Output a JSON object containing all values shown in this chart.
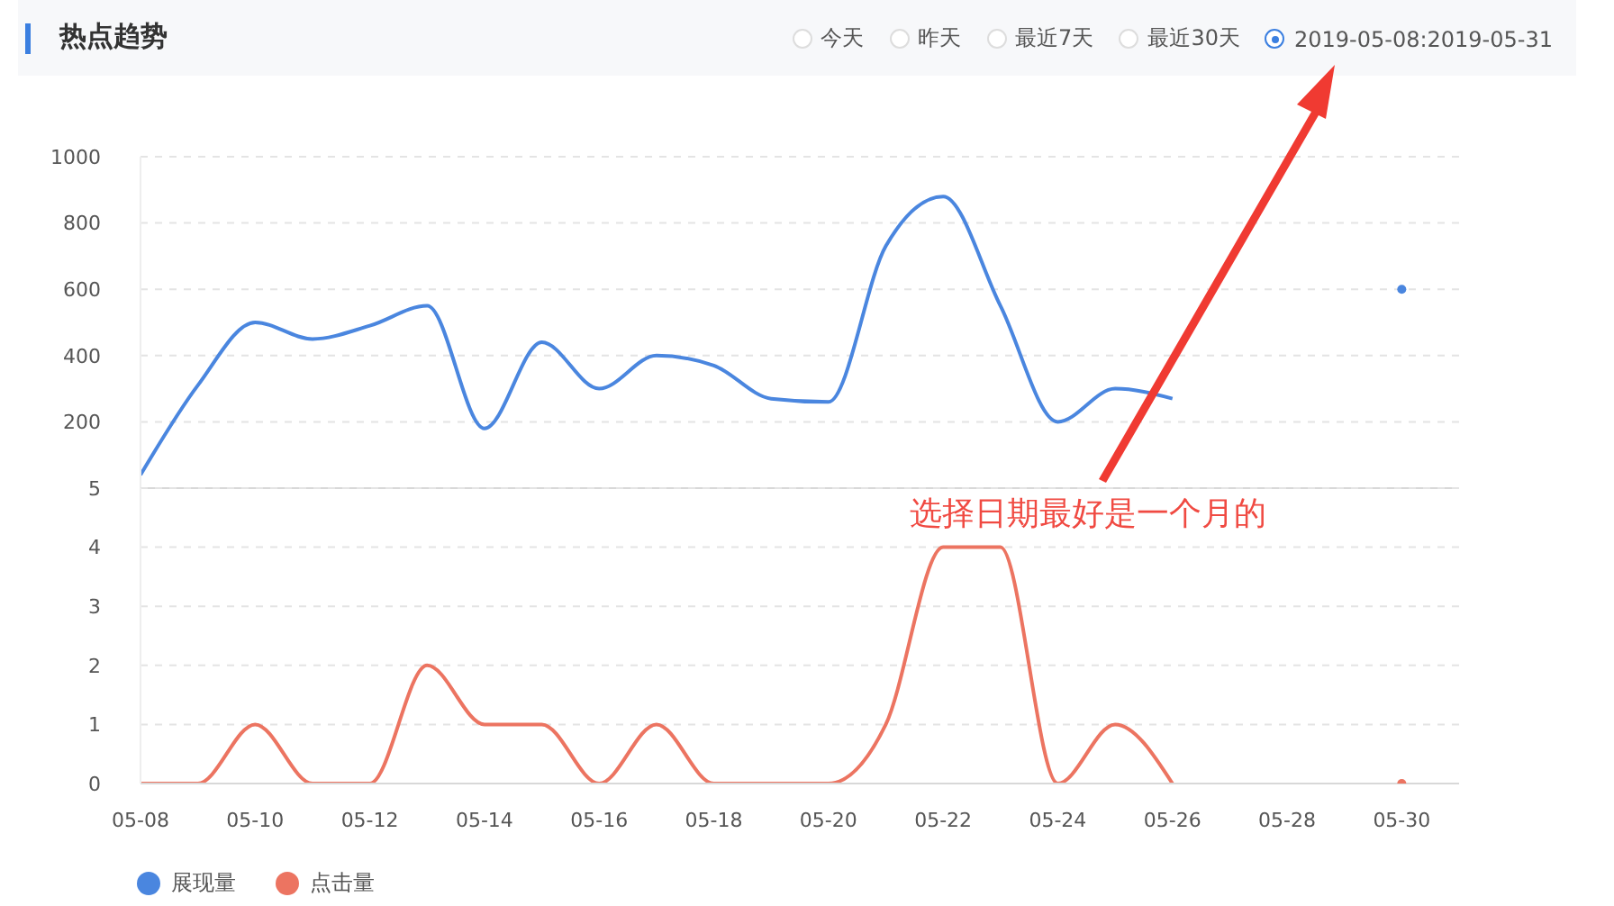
{
  "chart_data": [
    {
      "type": "line",
      "title": "热点趋势",
      "annotations": [
        "今天",
        "昨天",
        "最近7天",
        "最近30天",
        "2019-05-08:2019-05-31"
      ],
      "categories": [
        "05-08",
        null,
        "05-10",
        null,
        "05-12",
        null,
        "05-14",
        null,
        "05-16",
        null,
        "05-18",
        null,
        "05-20",
        null,
        "05-22",
        null,
        "05-24",
        null,
        "05-26",
        null,
        "05-28",
        null,
        "05-30",
        null
      ],
      "series": [
        {
          "name": "展现量",
          "color": "#4a86df",
          "values": [
            40,
            310,
            500,
            450,
            490,
            550,
            180,
            440,
            300,
            400,
            370,
            270,
            260,
            730,
            880,
            550,
            200,
            300,
            270,
            null,
            null,
            null,
            600,
            null
          ]
        }
      ],
      "ylim": [
        0,
        1000
      ],
      "yticks": [
        200,
        400,
        600,
        800,
        1000
      ],
      "grid": "y",
      "tick_labels": "y",
      "marker": "none",
      "line_style": "solid",
      "legend": "bottom left"
    },
    {
      "type": "line",
      "annotations": [
        "选择日期最好是一个月的"
      ],
      "categories": [
        "05-08",
        null,
        "05-10",
        null,
        "05-12",
        null,
        "05-14",
        null,
        "05-16",
        null,
        "05-18",
        null,
        "05-20",
        null,
        "05-22",
        null,
        "05-24",
        null,
        "05-26",
        null,
        "05-28",
        null,
        "05-30",
        null
      ],
      "series": [
        {
          "name": "点击量",
          "color": "#ec7461",
          "values": [
            0,
            0,
            1,
            0,
            0,
            2,
            1,
            1,
            0,
            1,
            0,
            0,
            0,
            1,
            4,
            4,
            0,
            1,
            0,
            null,
            null,
            null,
            0,
            null
          ]
        }
      ],
      "ylim": [
        0,
        5
      ],
      "yticks": [
        0,
        1,
        2,
        3,
        4,
        5
      ],
      "grid": "y",
      "marker": "none",
      "line_style": "solid",
      "legend": "bottom left"
    }
  ]
}
